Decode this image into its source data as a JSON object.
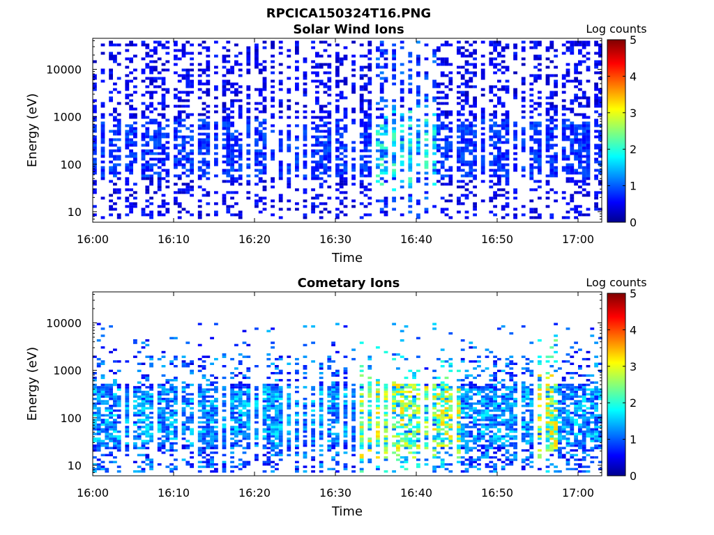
{
  "figure_title": "RPCICA150324T16.PNG",
  "chart_data": [
    {
      "type": "heatmap",
      "title": "Solar Wind Ions",
      "xlabel": "Time",
      "ylabel": "Energy (eV)",
      "x_ticks": [
        "16:00",
        "16:10",
        "16:20",
        "16:30",
        "16:40",
        "16:50",
        "17:00"
      ],
      "x_range": [
        "16:00",
        "17:03"
      ],
      "y_scale": "log",
      "y_ticks": [
        10,
        100,
        1000,
        10000
      ],
      "y_tick_labels": [
        "10",
        "100",
        "1000",
        "10000"
      ],
      "y_range": [
        6,
        45000
      ],
      "colorbar": {
        "label": "Log counts",
        "ticks": [
          "0",
          "1",
          "2",
          "3",
          "4",
          "5"
        ],
        "range": [
          0,
          5
        ],
        "colormap": "jet"
      },
      "profile": {
        "min_energy": 7,
        "max_energy": 40000,
        "peak_energy_eV": 200,
        "typical_log_counts": 0.5,
        "max_log_counts": 2.2,
        "high_energy_band_eV": [
          1000,
          40000
        ],
        "enhanced_interval": [
          "16:35",
          "16:42"
        ]
      }
    },
    {
      "type": "heatmap",
      "title": "Cometary Ions",
      "xlabel": "Time",
      "ylabel": "Energy (eV)",
      "x_ticks": [
        "16:00",
        "16:10",
        "16:20",
        "16:30",
        "16:40",
        "16:50",
        "17:00"
      ],
      "x_range": [
        "16:00",
        "17:03"
      ],
      "y_scale": "log",
      "y_ticks": [
        10,
        100,
        1000,
        10000
      ],
      "y_tick_labels": [
        "10",
        "100",
        "1000",
        "10000"
      ],
      "y_range": [
        6,
        45000
      ],
      "colorbar": {
        "label": "Log counts",
        "ticks": [
          "0",
          "1",
          "2",
          "3",
          "4",
          "5"
        ],
        "range": [
          0,
          5
        ],
        "colormap": "jet"
      },
      "profile": {
        "min_energy": 7,
        "max_energy": 10000,
        "peak_energy_eV": 100,
        "typical_log_counts": 1.0,
        "max_log_counts": 3.3,
        "enhanced_interval": [
          "16:33",
          "16:45"
        ],
        "secondary_peak_time": "16:56"
      }
    }
  ]
}
